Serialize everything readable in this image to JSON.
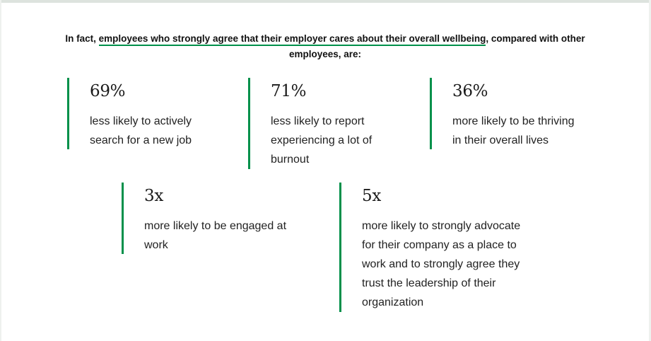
{
  "intro": {
    "prefix": "In fact, ",
    "highlight": "employees who strongly agree that their employer cares about their overall wellbeing",
    "suffix": ", compared with other employees, are:"
  },
  "stats": [
    {
      "value": "69%",
      "lines": [
        "less likely to actively",
        "search for a new job"
      ]
    },
    {
      "value": "71%",
      "lines": [
        "less likely to report",
        "experiencing a lot of",
        "burnout"
      ]
    },
    {
      "value": "36%",
      "lines": [
        "more likely to be thriving",
        "in their overall lives"
      ]
    },
    {
      "value": "3x",
      "lines": [
        "more likely to be engaged at",
        "work"
      ]
    },
    {
      "value": "5x",
      "lines": [
        "more likely to strongly advocate",
        "for their company as a place to",
        "work and to strongly agree they",
        "trust the leadership of their",
        "organization"
      ]
    }
  ],
  "colors": {
    "accent": "#00904a",
    "text": "#1a1a1a"
  }
}
